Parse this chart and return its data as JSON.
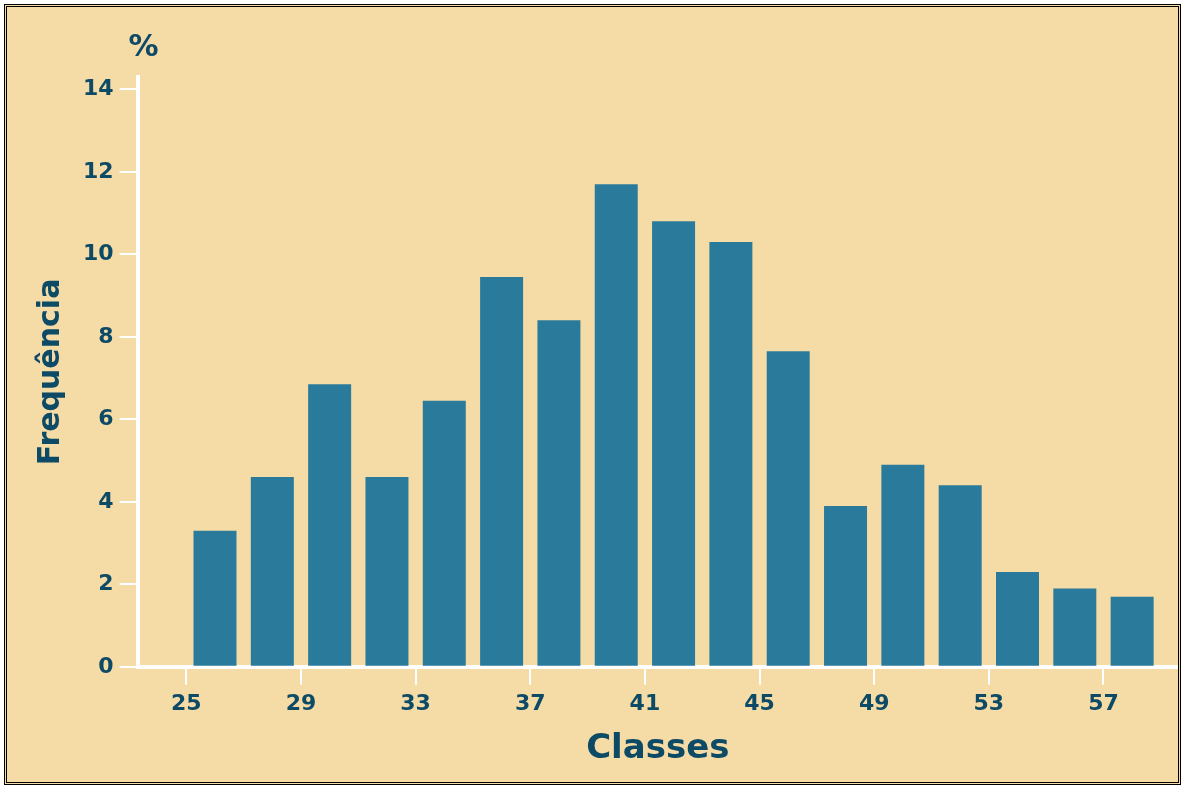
{
  "chart_data": {
    "type": "histogram",
    "xlabel": "Classes",
    "ylabel": "Frequência",
    "annotations": [
      "%"
    ],
    "bins": [
      25,
      27,
      29,
      31,
      33,
      35,
      37,
      39,
      41,
      43,
      45,
      47,
      49,
      51,
      53,
      55,
      57,
      59
    ],
    "values": [
      3.3,
      4.6,
      6.85,
      4.6,
      6.45,
      9.45,
      8.4,
      11.7,
      10.8,
      10.3,
      7.65,
      3.9,
      4.9,
      4.4,
      2.3,
      1.9,
      1.7
    ],
    "color": "#2a7b9b",
    "xlim": [
      23.3,
      59.6
    ],
    "xticks": [
      25,
      29,
      33,
      37,
      41,
      45,
      49,
      53,
      57
    ],
    "ylim": [
      0,
      14.3
    ],
    "yticks": [
      0,
      2,
      4,
      6,
      8,
      10,
      12,
      14
    ],
    "grid": false,
    "legend": false
  }
}
